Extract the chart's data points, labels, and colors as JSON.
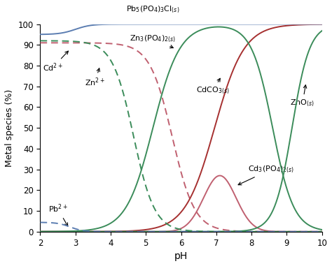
{
  "xlabel": "pH",
  "ylabel": "Metal species (%)",
  "xlim": [
    2,
    10
  ],
  "ylim": [
    0,
    100
  ],
  "xticks": [
    2,
    3,
    4,
    5,
    6,
    7,
    8,
    9,
    10
  ],
  "yticks": [
    0,
    10,
    20,
    30,
    40,
    50,
    60,
    70,
    80,
    90,
    100
  ],
  "figsize": [
    4.74,
    3.81
  ],
  "dpi": 100,
  "color_blue": "#5B7DB1",
  "color_green": "#3B8C5A",
  "color_red": "#A63030",
  "color_pink": "#C06070"
}
